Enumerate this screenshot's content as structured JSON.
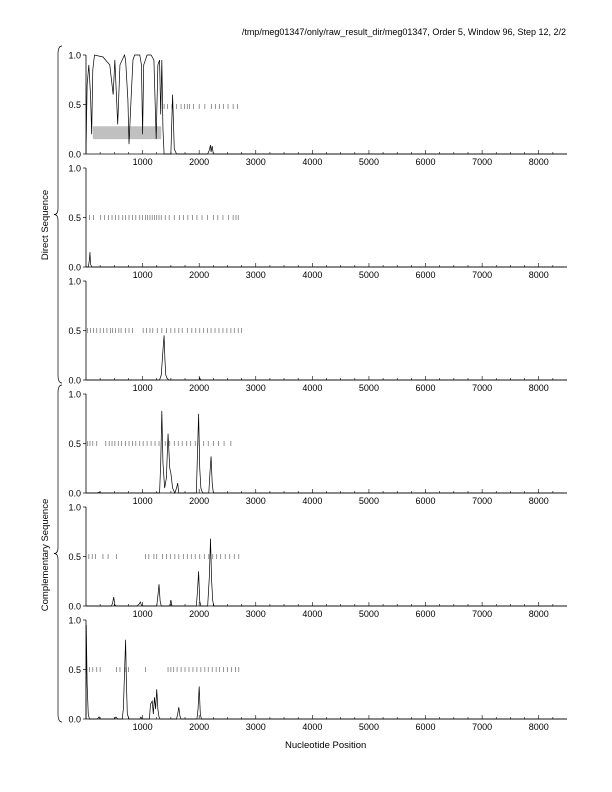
{
  "header": {
    "title": "/tmp/meg01347/only/raw_result_dir/meg01347, Order 5, Window 96, Step 12, 2/2"
  },
  "axis": {
    "xlabel": "Nucleotide Position"
  },
  "strands": {
    "direct_label": "Direct Sequence",
    "complementary_label": "Complementary Sequence"
  },
  "colors": {
    "line": "#000000",
    "shade": "#c0c0c0",
    "tick": "#6a6a6a"
  },
  "chart_data": {
    "type": "line",
    "title": "/tmp/meg01347/only/raw_result_dir/meg01347, Order 5, Window 96, Step 12, 2/2",
    "xlabel": "Nucleotide Position",
    "xlim": [
      0,
      8500
    ],
    "ylim": [
      0,
      1
    ],
    "x_ticks": [
      1000,
      2000,
      3000,
      4000,
      5000,
      6000,
      7000,
      8000
    ],
    "x_tick_labels": [
      "1000",
      "2000",
      "3000",
      "4000",
      "5000",
      "6000",
      "7000",
      "8000"
    ],
    "y_ticks": [
      0,
      0.5,
      1
    ],
    "y_tick_labels": [
      "0.0",
      "0.5",
      "1.0"
    ],
    "panels": [
      {
        "strand": "Direct Sequence",
        "frame": 1,
        "shaded_region": {
          "x": [
            120,
            1330
          ],
          "y": [
            0.15,
            0.28
          ]
        },
        "stops_y": 0.48,
        "stops": [
          1320,
          1380,
          1440,
          1520,
          1600,
          1680,
          1740,
          1790,
          1830,
          1900,
          2000,
          2100,
          2220,
          2290,
          2360,
          2430,
          2510,
          2600,
          2680
        ],
        "series": [
          [
            0,
            0
          ],
          [
            20,
            0.7
          ],
          [
            50,
            0.9
          ],
          [
            80,
            0.6
          ],
          [
            100,
            0.2
          ],
          [
            120,
            0.85
          ],
          [
            150,
            1.0
          ],
          [
            300,
            0.98
          ],
          [
            420,
            0.9
          ],
          [
            480,
            0.6
          ],
          [
            510,
            0.95
          ],
          [
            560,
            0.3
          ],
          [
            600,
            0.9
          ],
          [
            680,
            1.0
          ],
          [
            700,
            0.95
          ],
          [
            740,
            0.55
          ],
          [
            760,
            0.1
          ],
          [
            800,
            0.6
          ],
          [
            830,
            0.95
          ],
          [
            860,
            1.0
          ],
          [
            950,
            1.0
          ],
          [
            980,
            0.9
          ],
          [
            1000,
            0.2
          ],
          [
            1020,
            0.9
          ],
          [
            1080,
            1.0
          ],
          [
            1150,
            1.0
          ],
          [
            1200,
            0.95
          ],
          [
            1240,
            0.15
          ],
          [
            1270,
            0.9
          ],
          [
            1300,
            0.95
          ],
          [
            1320,
            0.4
          ],
          [
            1340,
            0.95
          ],
          [
            1360,
            0.25
          ],
          [
            1380,
            0.0
          ],
          [
            1450,
            0.0
          ],
          [
            1500,
            0.0
          ],
          [
            1530,
            0.6
          ],
          [
            1560,
            0.05
          ],
          [
            1600,
            0.0
          ],
          [
            2150,
            0.0
          ],
          [
            2180,
            0.04
          ],
          [
            2200,
            0.09
          ],
          [
            2210,
            0.02
          ],
          [
            2230,
            0.08
          ],
          [
            2250,
            0.0
          ],
          [
            2400,
            0.0
          ],
          [
            8500,
            0.0
          ]
        ]
      },
      {
        "strand": "Direct Sequence",
        "frame": 2,
        "stops_y": 0.5,
        "stops": [
          60,
          130,
          260,
          330,
          400,
          460,
          520,
          580,
          650,
          700,
          760,
          820,
          880,
          950,
          1000,
          1050,
          1090,
          1130,
          1170,
          1210,
          1250,
          1290,
          1330,
          1400,
          1470,
          1560,
          1650,
          1720,
          1800,
          1880,
          1960,
          2050,
          2150,
          2250,
          2330,
          2420,
          2520,
          2600,
          2650,
          2690
        ],
        "series": [
          [
            0,
            0
          ],
          [
            40,
            0
          ],
          [
            60,
            0.07
          ],
          [
            70,
            0.15
          ],
          [
            80,
            0.03
          ],
          [
            100,
            0
          ],
          [
            8500,
            0
          ]
        ]
      },
      {
        "strand": "Direct Sequence",
        "frame": 3,
        "stops_y": 0.5,
        "stops": [
          30,
          80,
          130,
          190,
          250,
          310,
          370,
          430,
          470,
          520,
          580,
          620,
          700,
          760,
          820,
          1010,
          1070,
          1130,
          1180,
          1260,
          1340,
          1420,
          1500,
          1570,
          1640,
          1700,
          1790,
          1870,
          1940,
          2010,
          2080,
          2150,
          2210,
          2280,
          2350,
          2420,
          2490,
          2560,
          2620,
          2690,
          2750
        ],
        "series": [
          [
            0,
            0
          ],
          [
            1300,
            0
          ],
          [
            1330,
            0.05
          ],
          [
            1360,
            0.3
          ],
          [
            1380,
            0.45
          ],
          [
            1395,
            0.2
          ],
          [
            1410,
            0.05
          ],
          [
            1430,
            0.02
          ],
          [
            1460,
            0
          ],
          [
            2000,
            0
          ],
          [
            2010,
            0.02
          ],
          [
            2030,
            0
          ],
          [
            8500,
            0
          ]
        ]
      },
      {
        "strand": "Complementary Sequence",
        "frame": 1,
        "stops_y": 0.5,
        "stops": [
          30,
          70,
          120,
          190,
          350,
          410,
          460,
          510,
          570,
          630,
          700,
          760,
          820,
          880,
          950,
          1010,
          1080,
          1150,
          1220,
          1290,
          1400,
          1480,
          1560,
          1630,
          1700,
          1780,
          1850,
          1930,
          2000,
          2080,
          2160,
          2250,
          2340,
          2440,
          2560
        ],
        "series": [
          [
            0,
            0
          ],
          [
            200,
            0
          ],
          [
            240,
            0.01
          ],
          [
            260,
            0
          ],
          [
            1300,
            0
          ],
          [
            1320,
            0.3
          ],
          [
            1340,
            0.83
          ],
          [
            1360,
            0.3
          ],
          [
            1390,
            0.05
          ],
          [
            1420,
            0.15
          ],
          [
            1450,
            0.6
          ],
          [
            1480,
            0.25
          ],
          [
            1500,
            0.2
          ],
          [
            1530,
            0.05
          ],
          [
            1570,
            0
          ],
          [
            1600,
            0.05
          ],
          [
            1620,
            0.1
          ],
          [
            1640,
            0
          ],
          [
            1950,
            0
          ],
          [
            1970,
            0.4
          ],
          [
            1990,
            0.8
          ],
          [
            2010,
            0.25
          ],
          [
            2030,
            0.05
          ],
          [
            2060,
            0
          ],
          [
            2170,
            0
          ],
          [
            2190,
            0.2
          ],
          [
            2210,
            0.37
          ],
          [
            2230,
            0.1
          ],
          [
            2250,
            0
          ],
          [
            8500,
            0
          ]
        ]
      },
      {
        "strand": "Complementary Sequence",
        "frame": 2,
        "stops_y": 0.5,
        "stops": [
          50,
          110,
          170,
          300,
          390,
          540,
          1050,
          1110,
          1200,
          1250,
          1350,
          1420,
          1490,
          1570,
          1640,
          1720,
          1790,
          1860,
          1930,
          2010,
          2090,
          2170,
          2240,
          2310,
          2380,
          2460,
          2540,
          2620,
          2700
        ],
        "series": [
          [
            0,
            0
          ],
          [
            450,
            0
          ],
          [
            470,
            0.03
          ],
          [
            490,
            0.09
          ],
          [
            510,
            0.01
          ],
          [
            530,
            0
          ],
          [
            900,
            0
          ],
          [
            940,
            0.02
          ],
          [
            960,
            0.04
          ],
          [
            980,
            0.01
          ],
          [
            1000,
            0
          ],
          [
            1250,
            0
          ],
          [
            1270,
            0.1
          ],
          [
            1290,
            0.22
          ],
          [
            1310,
            0.05
          ],
          [
            1330,
            0
          ],
          [
            1480,
            0
          ],
          [
            1500,
            0.06
          ],
          [
            1520,
            0
          ],
          [
            1950,
            0
          ],
          [
            1970,
            0.15
          ],
          [
            1990,
            0.35
          ],
          [
            2010,
            0.05
          ],
          [
            2030,
            0
          ],
          [
            2150,
            0
          ],
          [
            2180,
            0.3
          ],
          [
            2200,
            0.68
          ],
          [
            2220,
            0.25
          ],
          [
            2240,
            0.05
          ],
          [
            2260,
            0
          ],
          [
            8500,
            0
          ]
        ]
      },
      {
        "strand": "Complementary Sequence",
        "frame": 3,
        "stops_y": 0.5,
        "stops": [
          60,
          120,
          190,
          250,
          540,
          600,
          690,
          750,
          1050,
          1450,
          1500,
          1550,
          1610,
          1680,
          1750,
          1820,
          1890,
          1960,
          2030,
          2100,
          2160,
          2230,
          2300,
          2360,
          2430,
          2500,
          2570,
          2640,
          2700
        ],
        "series": [
          [
            0,
            0
          ],
          [
            5,
            0.95
          ],
          [
            20,
            0.35
          ],
          [
            40,
            0.05
          ],
          [
            60,
            0
          ],
          [
            200,
            0
          ],
          [
            230,
            0.02
          ],
          [
            250,
            0
          ],
          [
            500,
            0
          ],
          [
            530,
            0.02
          ],
          [
            560,
            0
          ],
          [
            640,
            0
          ],
          [
            660,
            0.1
          ],
          [
            680,
            0.45
          ],
          [
            700,
            0.8
          ],
          [
            715,
            0.35
          ],
          [
            730,
            0.05
          ],
          [
            760,
            0
          ],
          [
            950,
            0
          ],
          [
            970,
            0.02
          ],
          [
            990,
            0
          ],
          [
            1120,
            0
          ],
          [
            1140,
            0.15
          ],
          [
            1170,
            0.18
          ],
          [
            1190,
            0.05
          ],
          [
            1210,
            0.22
          ],
          [
            1230,
            0.1
          ],
          [
            1250,
            0.3
          ],
          [
            1270,
            0.1
          ],
          [
            1290,
            0.02
          ],
          [
            1310,
            0
          ],
          [
            1600,
            0
          ],
          [
            1620,
            0.05
          ],
          [
            1640,
            0.12
          ],
          [
            1660,
            0.03
          ],
          [
            1680,
            0
          ],
          [
            1960,
            0
          ],
          [
            1980,
            0.1
          ],
          [
            2000,
            0.33
          ],
          [
            2020,
            0.05
          ],
          [
            2040,
            0
          ],
          [
            8500,
            0
          ]
        ]
      }
    ]
  }
}
